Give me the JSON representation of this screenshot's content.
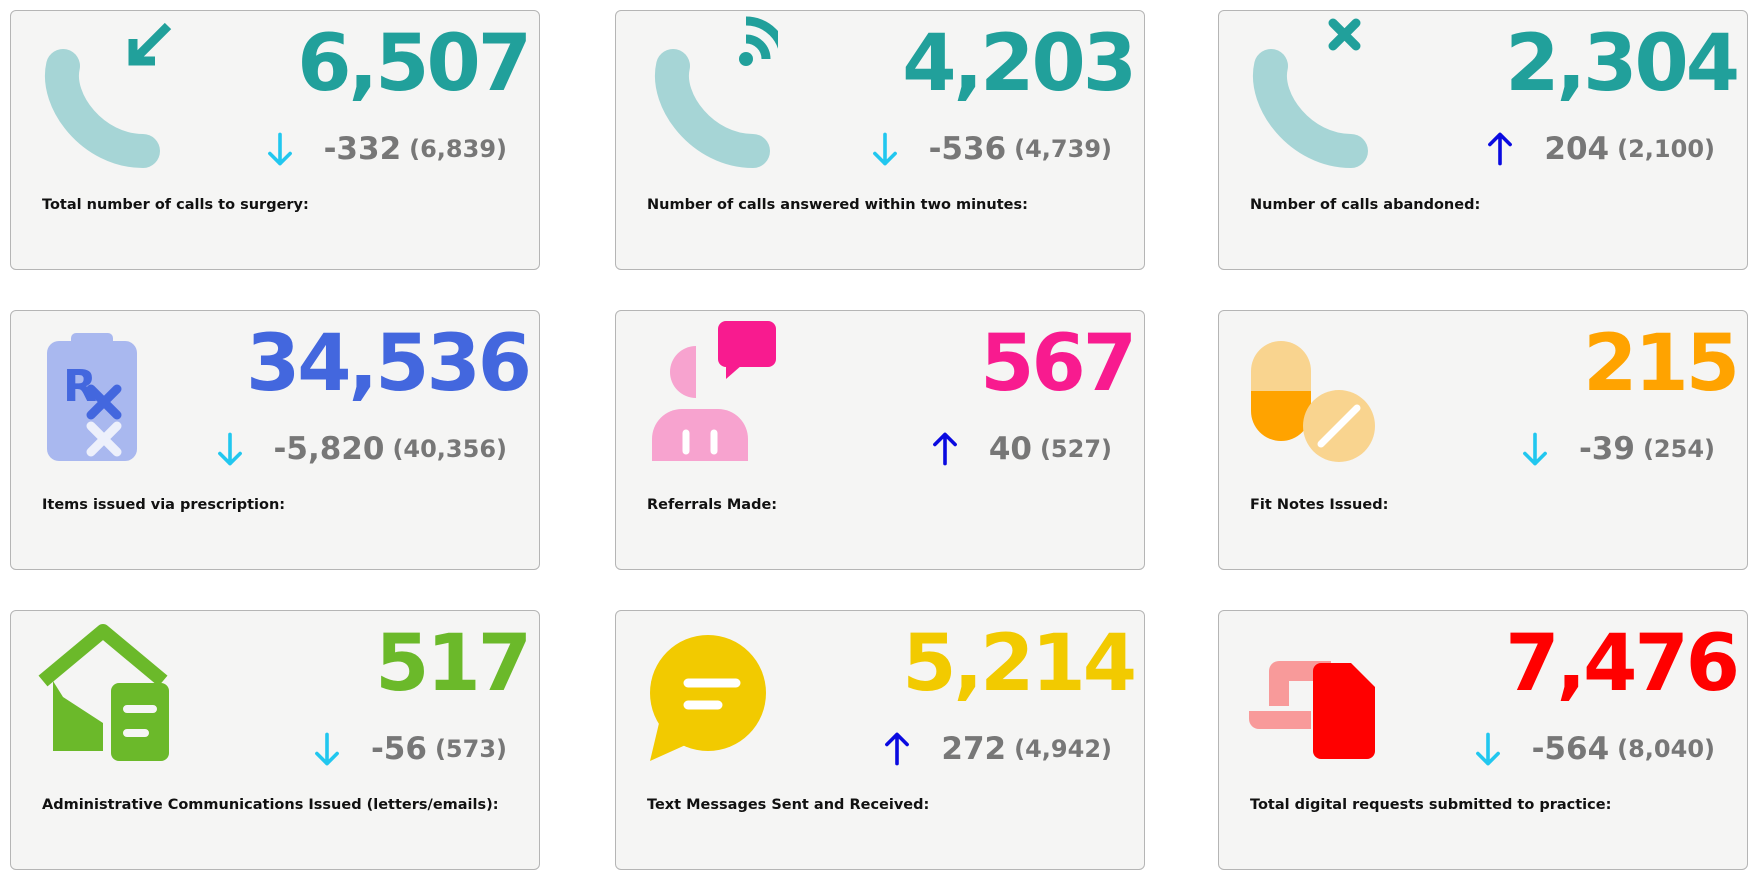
{
  "cards": [
    {
      "value": "6,507",
      "change": "-332",
      "previous": "(6,839)",
      "label": "Total number of calls to surgery:"
    },
    {
      "value": "4,203",
      "change": "-536",
      "previous": "(4,739)",
      "label": "Number of calls answered within two minutes:"
    },
    {
      "value": "2,304",
      "change": "204",
      "previous": "(2,100)",
      "label": "Number of calls abandoned:"
    },
    {
      "value": "34,536",
      "change": "-5,820",
      "previous": "(40,356)",
      "label": "Items issued via prescription:"
    },
    {
      "value": "567",
      "change": "40",
      "previous": "(527)",
      "label": "Referrals Made:"
    },
    {
      "value": "215",
      "change": "-39",
      "previous": "(254)",
      "label": "Fit Notes Issued:"
    },
    {
      "value": "517",
      "change": "-56",
      "previous": "(573)",
      "label": "Administrative Communications Issued (letters/emails):"
    },
    {
      "value": "5,214",
      "change": "272",
      "previous": "(4,942)",
      "label": "Text Messages Sent and Received:"
    },
    {
      "value": "7,476",
      "change": "-564",
      "previous": "(8,040)",
      "label": "Total digital requests submitted to practice:"
    }
  ]
}
